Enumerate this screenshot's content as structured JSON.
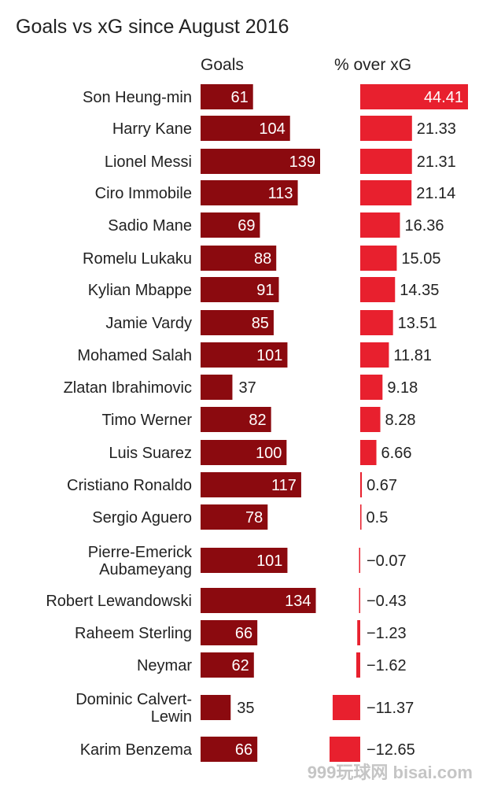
{
  "title": "Goals vs xG since August 2016",
  "headers": {
    "goals": "Goals",
    "pct": "% over xG"
  },
  "colors": {
    "goals_bar": "#8b0a0f",
    "pct_bar": "#e8202e",
    "text": "#222222",
    "inside_text": "#ffffff",
    "axis_line": "#999999"
  },
  "watermark": "999玩球网 bisai.com",
  "chart_data": {
    "type": "bar",
    "title": "Goals vs xG since August 2016",
    "categories": [
      "Son Heung-min",
      "Harry Kane",
      "Lionel Messi",
      "Ciro Immobile",
      "Sadio Mane",
      "Romelu Lukaku",
      "Kylian Mbappe",
      "Jamie Vardy",
      "Mohamed Salah",
      "Zlatan Ibrahimovic",
      "Timo Werner",
      "Luis Suarez",
      "Cristiano Ronaldo",
      "Sergio Aguero",
      "Pierre-Emerick Aubameyang",
      "Robert Lewandowski",
      "Raheem Sterling",
      "Neymar",
      "Dominic Calvert-Lewin",
      "Karim Benzema"
    ],
    "name_lines": [
      [
        "Son Heung-min"
      ],
      [
        "Harry Kane"
      ],
      [
        "Lionel Messi"
      ],
      [
        "Ciro Immobile"
      ],
      [
        "Sadio Mane"
      ],
      [
        "Romelu Lukaku"
      ],
      [
        "Kylian Mbappe"
      ],
      [
        "Jamie Vardy"
      ],
      [
        "Mohamed Salah"
      ],
      [
        "Zlatan Ibrahimovic"
      ],
      [
        "Timo Werner"
      ],
      [
        "Luis Suarez"
      ],
      [
        "Cristiano Ronaldo"
      ],
      [
        "Sergio Aguero"
      ],
      [
        "Pierre-Emerick",
        "Aubameyang"
      ],
      [
        "Robert Lewandowski"
      ],
      [
        "Raheem Sterling"
      ],
      [
        "Neymar"
      ],
      [
        "Dominic Calvert-",
        "Lewin"
      ],
      [
        "Karim Benzema"
      ]
    ],
    "series": [
      {
        "name": "Goals",
        "values": [
          61,
          104,
          139,
          113,
          69,
          88,
          91,
          85,
          101,
          37,
          82,
          100,
          117,
          78,
          101,
          134,
          66,
          62,
          35,
          66
        ]
      },
      {
        "name": "% over xG",
        "values": [
          44.41,
          21.33,
          21.31,
          21.14,
          16.36,
          15.05,
          14.35,
          13.51,
          11.81,
          9.18,
          8.28,
          6.66,
          0.67,
          0.5,
          -0.07,
          -0.43,
          -1.23,
          -1.62,
          -11.37,
          -12.65
        ]
      }
    ],
    "value_labels": {
      "goals": [
        "61",
        "104",
        "139",
        "113",
        "69",
        "88",
        "91",
        "85",
        "101",
        "37",
        "82",
        "100",
        "117",
        "78",
        "101",
        "134",
        "66",
        "62",
        "35",
        "66"
      ],
      "pct": [
        "44.41",
        "21.33",
        "21.31",
        "21.14",
        "16.36",
        "15.05",
        "14.35",
        "13.51",
        "11.81",
        "9.18",
        "8.28",
        "6.66",
        "0.67",
        "0.5",
        "−0.07",
        "−0.43",
        "−1.23",
        "−1.62",
        "−11.37",
        "−12.65"
      ]
    },
    "goals_range": [
      0,
      139
    ],
    "pct_range": [
      -12.65,
      44.41
    ],
    "grid": false,
    "legend": "none"
  }
}
